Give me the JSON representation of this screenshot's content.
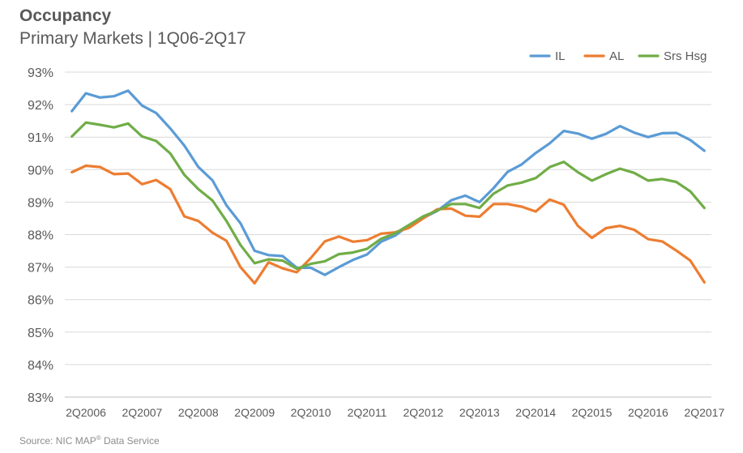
{
  "title": "Occupancy",
  "subtitle": "Primary Markets | 1Q06-2Q17",
  "source_prefix": "Source: NIC MAP",
  "source_sup": "®",
  "source_suffix": " Data Service",
  "chart_data": {
    "type": "line",
    "title": "Occupancy",
    "subtitle": "Primary Markets | 1Q06-2Q17",
    "xlabel": "",
    "ylabel": "",
    "ylim": [
      83,
      93
    ],
    "yticks": [
      "83%",
      "84%",
      "85%",
      "86%",
      "87%",
      "88%",
      "89%",
      "90%",
      "91%",
      "92%",
      "93%"
    ],
    "xticks": [
      "2Q2006",
      "2Q2007",
      "2Q2008",
      "2Q2009",
      "2Q2010",
      "2Q2011",
      "2Q2012",
      "2Q2013",
      "2Q2014",
      "2Q2015",
      "2Q2016",
      "2Q2017"
    ],
    "grid": "horizontal",
    "legend": "top-right",
    "x": [
      "1Q06",
      "2Q06",
      "3Q06",
      "4Q06",
      "1Q07",
      "2Q07",
      "3Q07",
      "4Q07",
      "1Q08",
      "2Q08",
      "3Q08",
      "4Q08",
      "1Q09",
      "2Q09",
      "3Q09",
      "4Q09",
      "1Q10",
      "2Q10",
      "3Q10",
      "4Q10",
      "1Q11",
      "2Q11",
      "3Q11",
      "4Q11",
      "1Q12",
      "2Q12",
      "3Q12",
      "4Q12",
      "1Q13",
      "2Q13",
      "3Q13",
      "4Q13",
      "1Q14",
      "2Q14",
      "3Q14",
      "4Q14",
      "1Q15",
      "2Q15",
      "3Q15",
      "4Q15",
      "1Q16",
      "2Q16",
      "3Q16",
      "4Q16",
      "1Q17",
      "2Q17"
    ],
    "series": [
      {
        "name": "IL",
        "color": "#5B9BD5",
        "values": [
          91.8,
          92.35,
          92.22,
          92.26,
          92.43,
          91.97,
          91.74,
          91.27,
          90.74,
          90.08,
          89.67,
          88.9,
          88.35,
          87.5,
          87.37,
          87.34,
          86.98,
          86.98,
          86.76,
          87.0,
          87.22,
          87.39,
          87.78,
          87.97,
          88.29,
          88.51,
          88.73,
          89.06,
          89.2,
          89.0,
          89.43,
          89.93,
          90.16,
          90.51,
          90.81,
          91.19,
          91.11,
          90.95,
          91.1,
          91.34,
          91.14,
          91.0,
          91.12,
          91.13,
          90.91,
          90.58
        ]
      },
      {
        "name": "AL",
        "color": "#ED7D31",
        "values": [
          89.92,
          90.12,
          90.08,
          89.86,
          89.88,
          89.55,
          89.68,
          89.4,
          88.56,
          88.42,
          88.06,
          87.81,
          87.0,
          86.5,
          87.15,
          86.96,
          86.84,
          87.28,
          87.79,
          87.94,
          87.78,
          87.83,
          88.03,
          88.07,
          88.21,
          88.5,
          88.78,
          88.8,
          88.58,
          88.55,
          88.94,
          88.94,
          88.86,
          88.71,
          89.08,
          88.92,
          88.27,
          87.9,
          88.2,
          88.27,
          88.15,
          87.86,
          87.79,
          87.51,
          87.2,
          86.53
        ]
      },
      {
        "name": "Srs Hsg",
        "color": "#70AD47",
        "values": [
          91.02,
          91.45,
          91.38,
          91.3,
          91.42,
          91.02,
          90.88,
          90.5,
          89.84,
          89.4,
          89.05,
          88.42,
          87.68,
          87.12,
          87.24,
          87.2,
          86.95,
          87.1,
          87.18,
          87.4,
          87.45,
          87.56,
          87.87,
          88.04,
          88.3,
          88.56,
          88.74,
          88.94,
          88.94,
          88.82,
          89.26,
          89.51,
          89.6,
          89.74,
          90.08,
          90.24,
          89.92,
          89.66,
          89.86,
          90.03,
          89.9,
          89.66,
          89.71,
          89.62,
          89.33,
          88.82
        ]
      }
    ]
  }
}
